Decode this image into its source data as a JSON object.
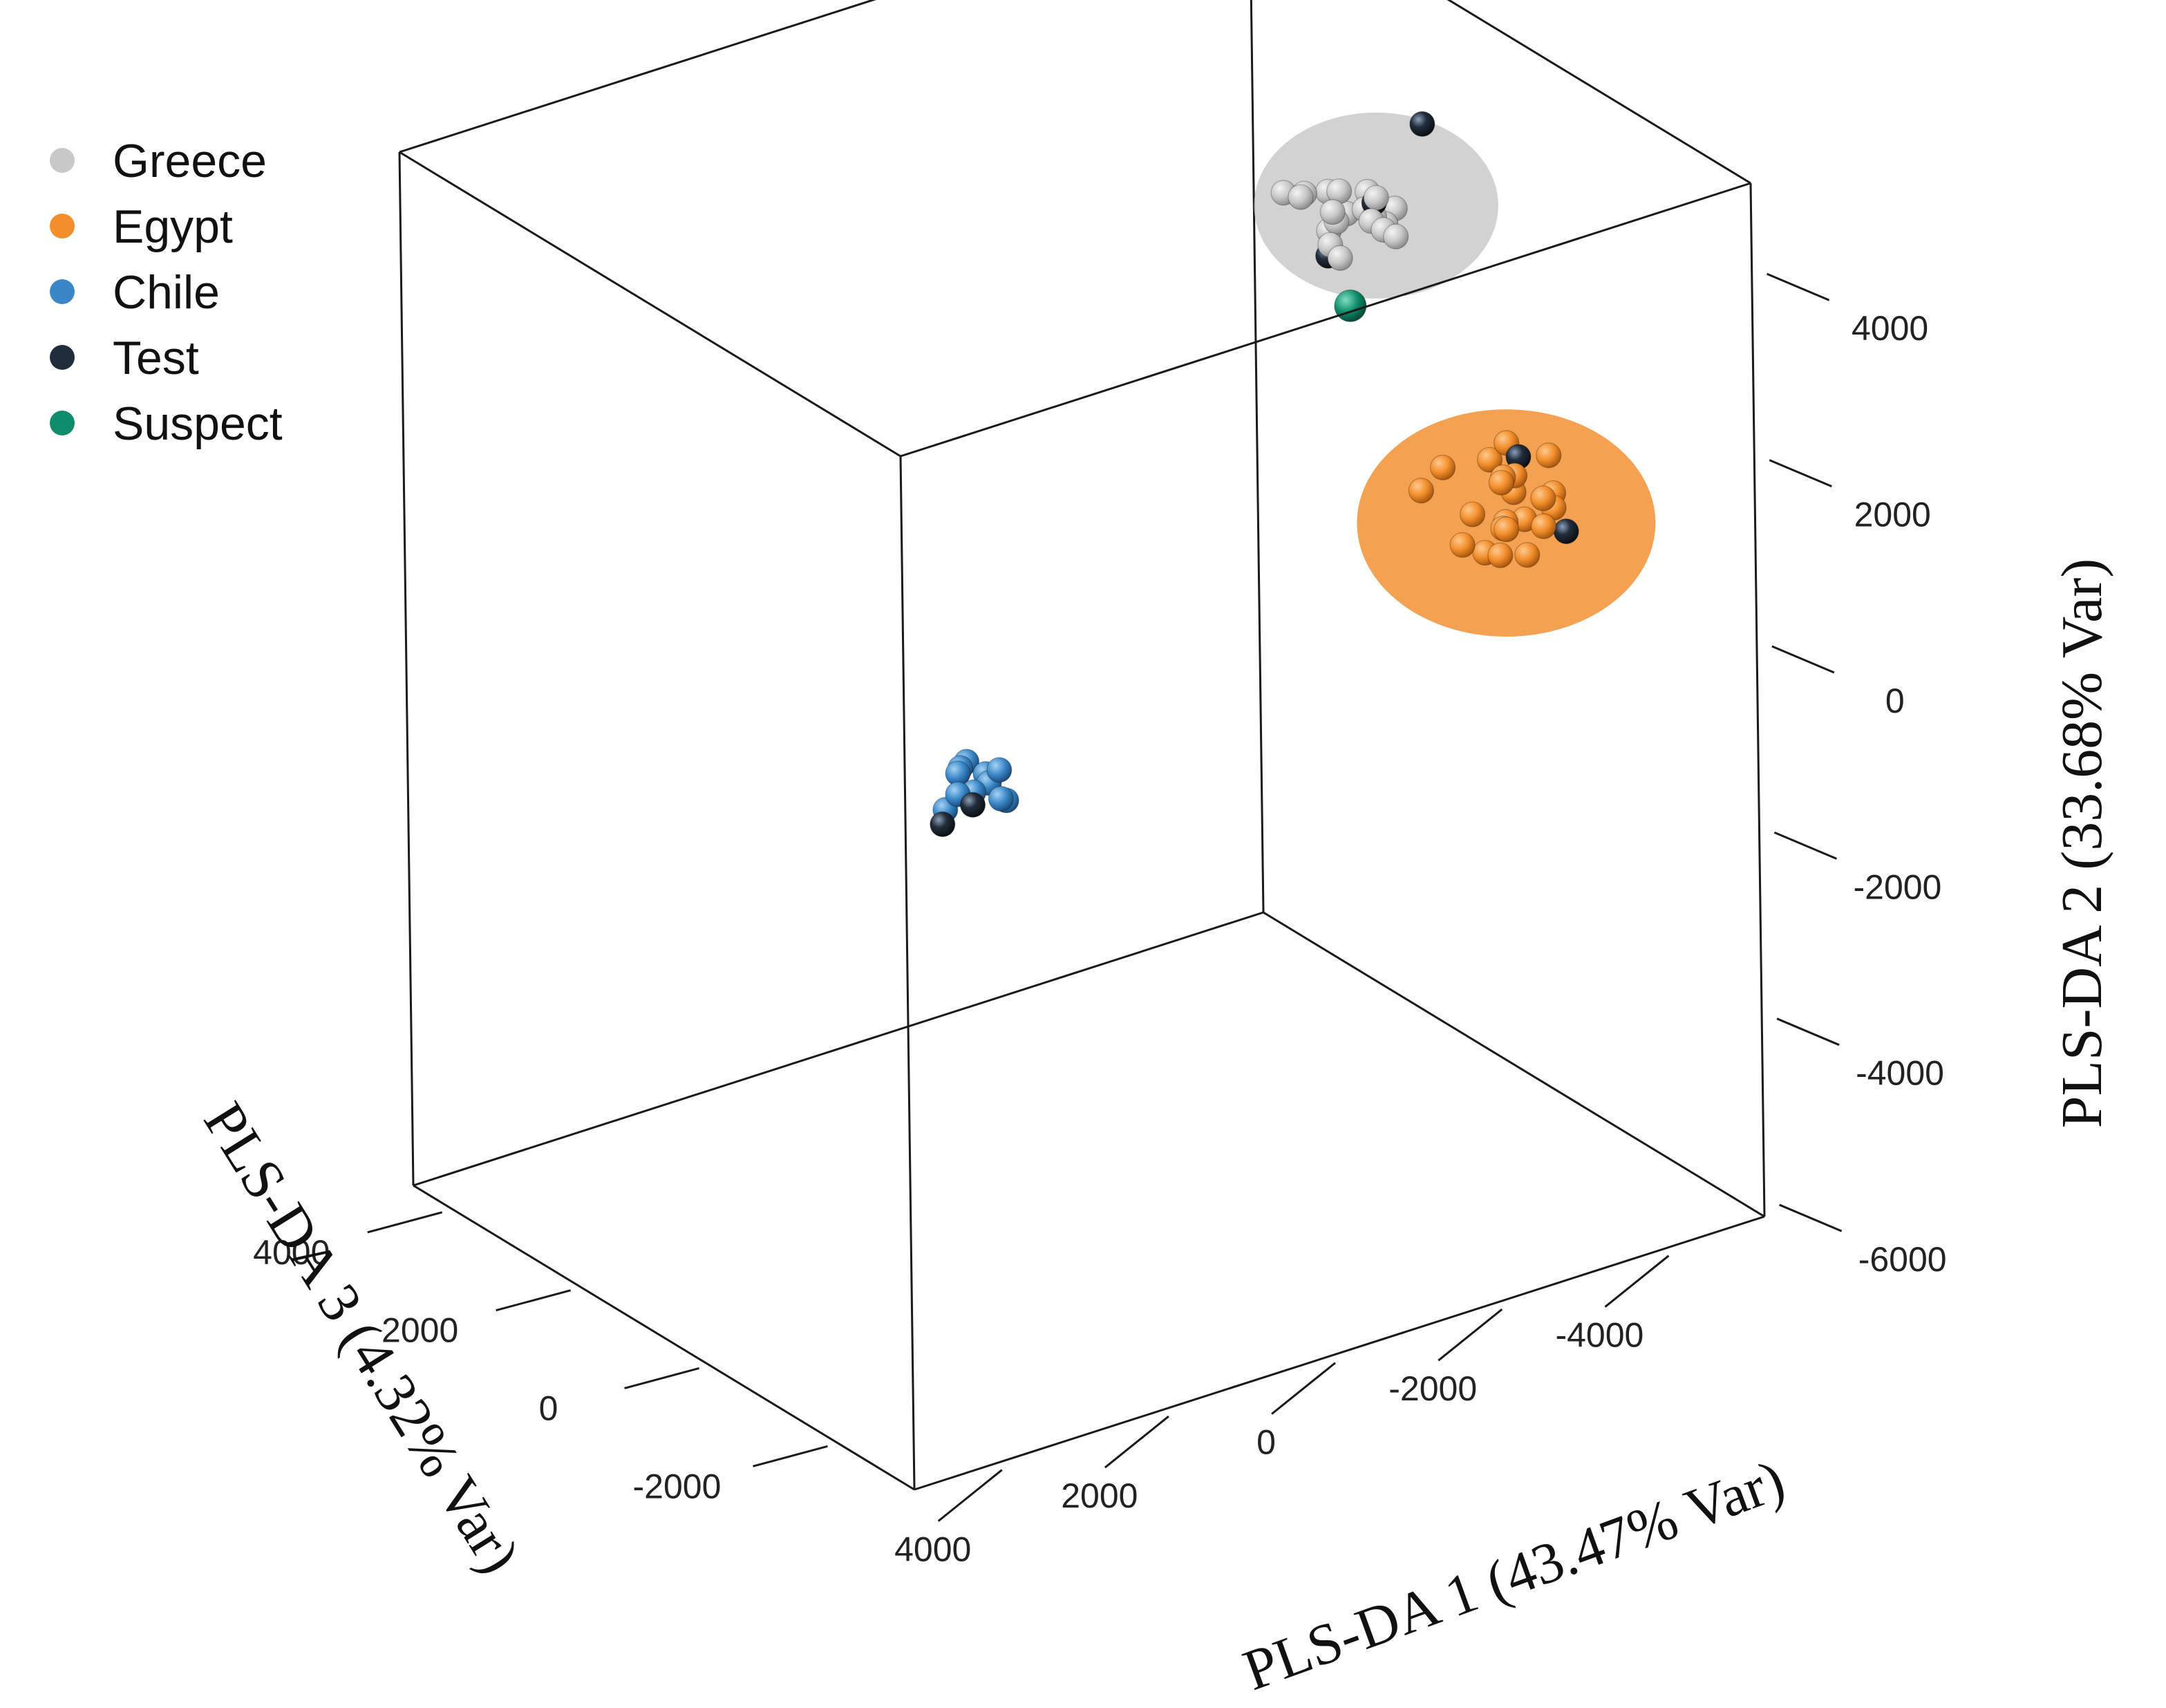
{
  "chart_data": {
    "type": "scatter",
    "projection": "3d",
    "axes": {
      "x": {
        "label": "PLS-DA 1 (43.47% Var)",
        "ticks": [
          {
            "value": -4000,
            "label": "-4000"
          },
          {
            "value": -2000,
            "label": "-2000"
          },
          {
            "value": 0,
            "label": "0"
          },
          {
            "value": 2000,
            "label": "2000"
          },
          {
            "value": 4000,
            "label": "4000"
          }
        ],
        "range": [
          -5000,
          5200
        ]
      },
      "y": {
        "label": "PLS-DA 2 (33.68% Var)",
        "ticks": [
          {
            "value": -6000,
            "label": "-6000"
          },
          {
            "value": -4000,
            "label": "-4000"
          },
          {
            "value": -2000,
            "label": "-2000"
          },
          {
            "value": 0,
            "label": "0"
          },
          {
            "value": 2000,
            "label": "2000"
          },
          {
            "value": 4000,
            "label": "4000"
          }
        ],
        "range": [
          -6200,
          4900
        ]
      },
      "z": {
        "label": "PLS-DA 3 (4.32% Var)",
        "ticks": [
          {
            "value": -2000,
            "label": "-2000"
          },
          {
            "value": 0,
            "label": "0"
          },
          {
            "value": 2000,
            "label": "2000"
          },
          {
            "value": 4000,
            "label": "4000"
          }
        ],
        "range": [
          -3200,
          4600
        ]
      }
    },
    "legend": {
      "position": "top-left",
      "entries": [
        {
          "name": "Greece",
          "color": "#c8c8c8"
        },
        {
          "name": "Egypt",
          "color": "#f28e2b"
        },
        {
          "name": "Chile",
          "color": "#3a87c8"
        },
        {
          "name": "Test",
          "color": "#222d3b"
        },
        {
          "name": "Suspect",
          "color": "#0f8c6a"
        }
      ]
    },
    "ellipses": [
      {
        "group": "Greece",
        "color": "#c0c0c0",
        "center": [
          -4100,
          2950,
          1500
        ],
        "radius": 900
      },
      {
        "group": "Egypt",
        "color": "#f28e2b",
        "center": [
          -2330,
          1850,
          -2800
        ],
        "radius": 1100
      }
    ],
    "series": [
      {
        "name": "Greece",
        "color": "#c8c8c8",
        "points": [
          [
            -3880,
            2920,
            1100
          ],
          [
            -3300,
            3150,
            1900
          ],
          [
            -3580,
            3030,
            1500
          ],
          [
            -3960,
            2950,
            1500
          ],
          [
            -3830,
            3010,
            1900
          ],
          [
            -3510,
            2640,
            1300
          ],
          [
            -4050,
            2710,
            1900
          ],
          [
            -4210,
            2720,
            1500
          ],
          [
            -3550,
            3070,
            1900
          ],
          [
            -4150,
            3000,
            1700
          ],
          [
            -3760,
            2650,
            1800
          ],
          [
            -4000,
            2900,
            1400
          ],
          [
            -3200,
            3300,
            1500
          ],
          [
            -3700,
            2850,
            1600
          ],
          [
            -3950,
            2870,
            1000
          ],
          [
            -4400,
            2790,
            1600
          ],
          [
            -3950,
            3160,
            1300
          ],
          [
            -3470,
            2750,
            1400
          ],
          [
            -3660,
            3230,
            1500
          ],
          [
            -3850,
            2960,
            1250
          ]
        ]
      },
      {
        "name": "Egypt",
        "color": "#f28e2b",
        "points": [
          [
            -1200,
            2980,
            -3300
          ],
          [
            -3050,
            1880,
            -2600
          ],
          [
            -2500,
            1500,
            -2900
          ],
          [
            -2700,
            2050,
            -2900
          ],
          [
            -1950,
            2100,
            -3300
          ],
          [
            -1700,
            2170,
            -2300
          ],
          [
            -3000,
            2300,
            -2600
          ],
          [
            -2700,
            1750,
            -2900
          ],
          [
            -2150,
            1540,
            -2700
          ],
          [
            -1500,
            2020,
            -3200
          ],
          [
            -2500,
            2090,
            -2700
          ],
          [
            -2300,
            2350,
            -2800
          ],
          [
            -2900,
            1850,
            -2800
          ],
          [
            -1700,
            2250,
            -3100
          ],
          [
            -2050,
            2490,
            -3100
          ],
          [
            -2650,
            2450,
            -2400
          ],
          [
            -2400,
            1800,
            -2700
          ],
          [
            -2140,
            1930,
            -3000
          ],
          [
            -1950,
            1780,
            -3200
          ],
          [
            -2700,
            1700,
            -2600
          ],
          [
            -2400,
            2360,
            -2850
          ],
          [
            -2600,
            2200,
            -2200
          ]
        ]
      },
      {
        "name": "Chile",
        "color": "#3a87c8",
        "points": [
          [
            1000,
            -1500,
            1050
          ],
          [
            1110,
            -1400,
            1200
          ],
          [
            1330,
            -1400,
            1050
          ],
          [
            1140,
            -1250,
            650
          ],
          [
            1450,
            -1400,
            650
          ],
          [
            1060,
            -1600,
            650
          ],
          [
            1200,
            -1500,
            550
          ],
          [
            1300,
            -1350,
            1050
          ],
          [
            1600,
            -1650,
            900
          ],
          [
            1150,
            -1450,
            800
          ],
          [
            1600,
            -1400,
            700
          ],
          [
            1300,
            -1600,
            900
          ]
        ]
      },
      {
        "name": "Test",
        "color": "#222d3b",
        "points": [
          [
            -4740,
            3600,
            1600
          ],
          [
            -4000,
            3050,
            1400
          ],
          [
            -3670,
            2450,
            1700
          ],
          [
            -2600,
            2420,
            -2650
          ],
          [
            -3350,
            1300,
            -2400
          ],
          [
            1750,
            -1700,
            750
          ],
          [
            1500,
            -1500,
            600
          ]
        ]
      },
      {
        "name": "Suspect",
        "color": "#0f8c6a",
        "points": [
          [
            -3700,
            2030,
            1400
          ]
        ]
      }
    ]
  }
}
